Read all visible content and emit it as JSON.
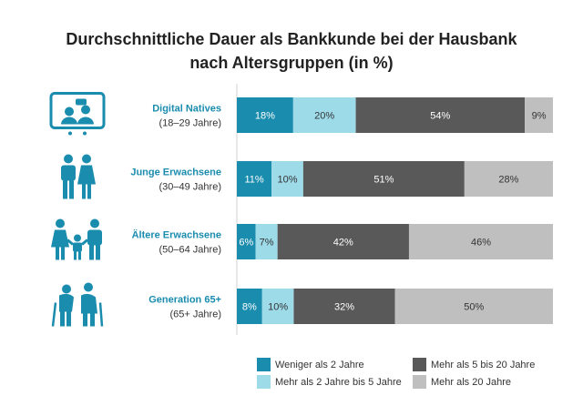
{
  "title_line1": "Durchschnittliche Dauer als Bankkunde bei der Hausbank",
  "title_line2": "nach Altersgruppen (in %)",
  "colors": {
    "accent": "#1a8cae",
    "s1": "#1a8cae",
    "s2": "#9ddbe9",
    "s3": "#595959",
    "s4": "#bfbfbf"
  },
  "chart_data": {
    "type": "bar",
    "orientation": "horizontal",
    "stacked": true,
    "title": "Durchschnittliche Dauer als Bankkunde bei der Hausbank nach Altersgruppen (in %)",
    "categories": [
      {
        "name": "Digital Natives",
        "sub": "(18–29 Jahre)",
        "icon": "tablet-video-call-icon"
      },
      {
        "name": "Junge Erwachsene",
        "sub": "(30–49 Jahre)",
        "icon": "couple-icon"
      },
      {
        "name": "Ältere Erwachsene",
        "sub": "(50–64 Jahre)",
        "icon": "family-icon"
      },
      {
        "name": "Generation 65+",
        "sub": "(65+ Jahre)",
        "icon": "seniors-with-canes-icon"
      }
    ],
    "series": [
      {
        "name": "Weniger als 2 Jahre",
        "color": "#1a8cae",
        "values": [
          18,
          11,
          6,
          8
        ],
        "labels": [
          "18%",
          "11%",
          "6%",
          "8%"
        ]
      },
      {
        "name": "Mehr als 2 Jahre bis 5 Jahre",
        "color": "#9ddbe9",
        "values": [
          20,
          10,
          7,
          10
        ],
        "labels": [
          "20%",
          "10%",
          "7%",
          "10%"
        ]
      },
      {
        "name": "Mehr als 5 bis 20 Jahre",
        "color": "#595959",
        "values": [
          54,
          51,
          42,
          32
        ],
        "labels": [
          "54%",
          "51%",
          "42%",
          "32%"
        ]
      },
      {
        "name": "Mehr als 20 Jahre",
        "color": "#bfbfbf",
        "values": [
          9,
          28,
          46,
          50
        ],
        "labels": [
          "9%",
          "28%",
          "46%",
          "50%"
        ]
      }
    ],
    "legend_position": "bottom-right",
    "grid": false
  }
}
